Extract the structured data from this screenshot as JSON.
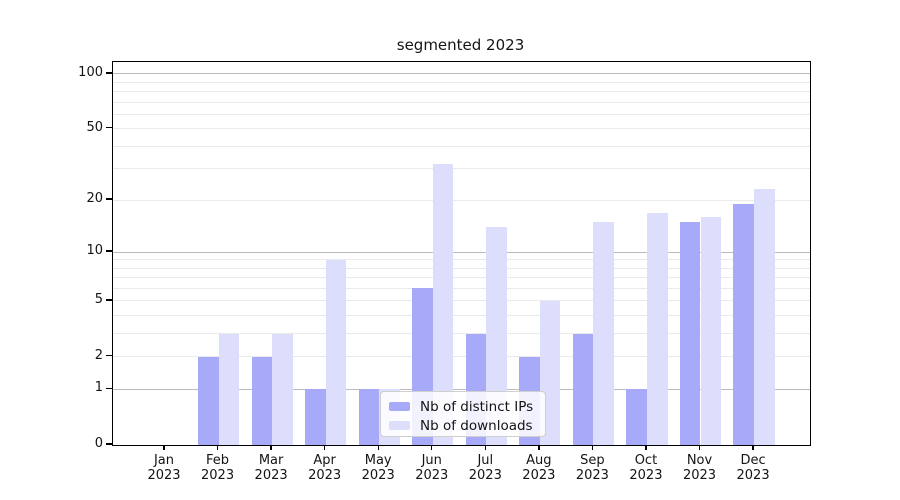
{
  "title": "segmented 2023",
  "chart_data": {
    "type": "bar",
    "title": "segmented 2023",
    "yscale": "symlog",
    "ylim": [
      0,
      116
    ],
    "grid": "horizontal",
    "legend_position": "inside-bottom-center",
    "x_year": "2023",
    "categories": [
      "Jan",
      "Feb",
      "Mar",
      "Apr",
      "May",
      "Jun",
      "Jul",
      "Aug",
      "Sep",
      "Oct",
      "Nov",
      "Dec"
    ],
    "series": [
      {
        "name": "Nb of distinct IPs",
        "color": "#a7aaf8",
        "values": [
          0,
          2,
          2,
          1,
          1,
          6,
          3,
          2,
          3,
          1,
          15,
          19
        ]
      },
      {
        "name": "Nb of downloads",
        "color": "#dcdefb",
        "values": [
          0,
          3,
          3,
          9,
          1,
          32,
          14,
          5,
          15,
          17,
          16,
          23
        ]
      }
    ],
    "y_ticks": [
      0,
      1,
      2,
      5,
      10,
      20,
      50,
      100
    ],
    "y_tick_labels": [
      "0",
      "1",
      "2",
      "5",
      "10",
      "20",
      "50",
      "100"
    ],
    "y_grid_major": [
      1,
      10,
      100
    ],
    "y_grid_minor": [
      2,
      3,
      4,
      5,
      6,
      7,
      8,
      9,
      20,
      30,
      40,
      50,
      60,
      70,
      80,
      90
    ]
  },
  "legend": {
    "items": [
      {
        "label": "Nb of distinct IPs",
        "color": "#a7aaf8"
      },
      {
        "label": "Nb of downloads",
        "color": "#dcdefb"
      }
    ]
  },
  "colors": {
    "background": "#ffffff",
    "spine": "#000000",
    "grid_major": "#bcbcbc",
    "grid_minor": "#eaeaea",
    "text": "#141414",
    "bar_dark": "#a7aaf8",
    "bar_light": "#dcdefb"
  }
}
